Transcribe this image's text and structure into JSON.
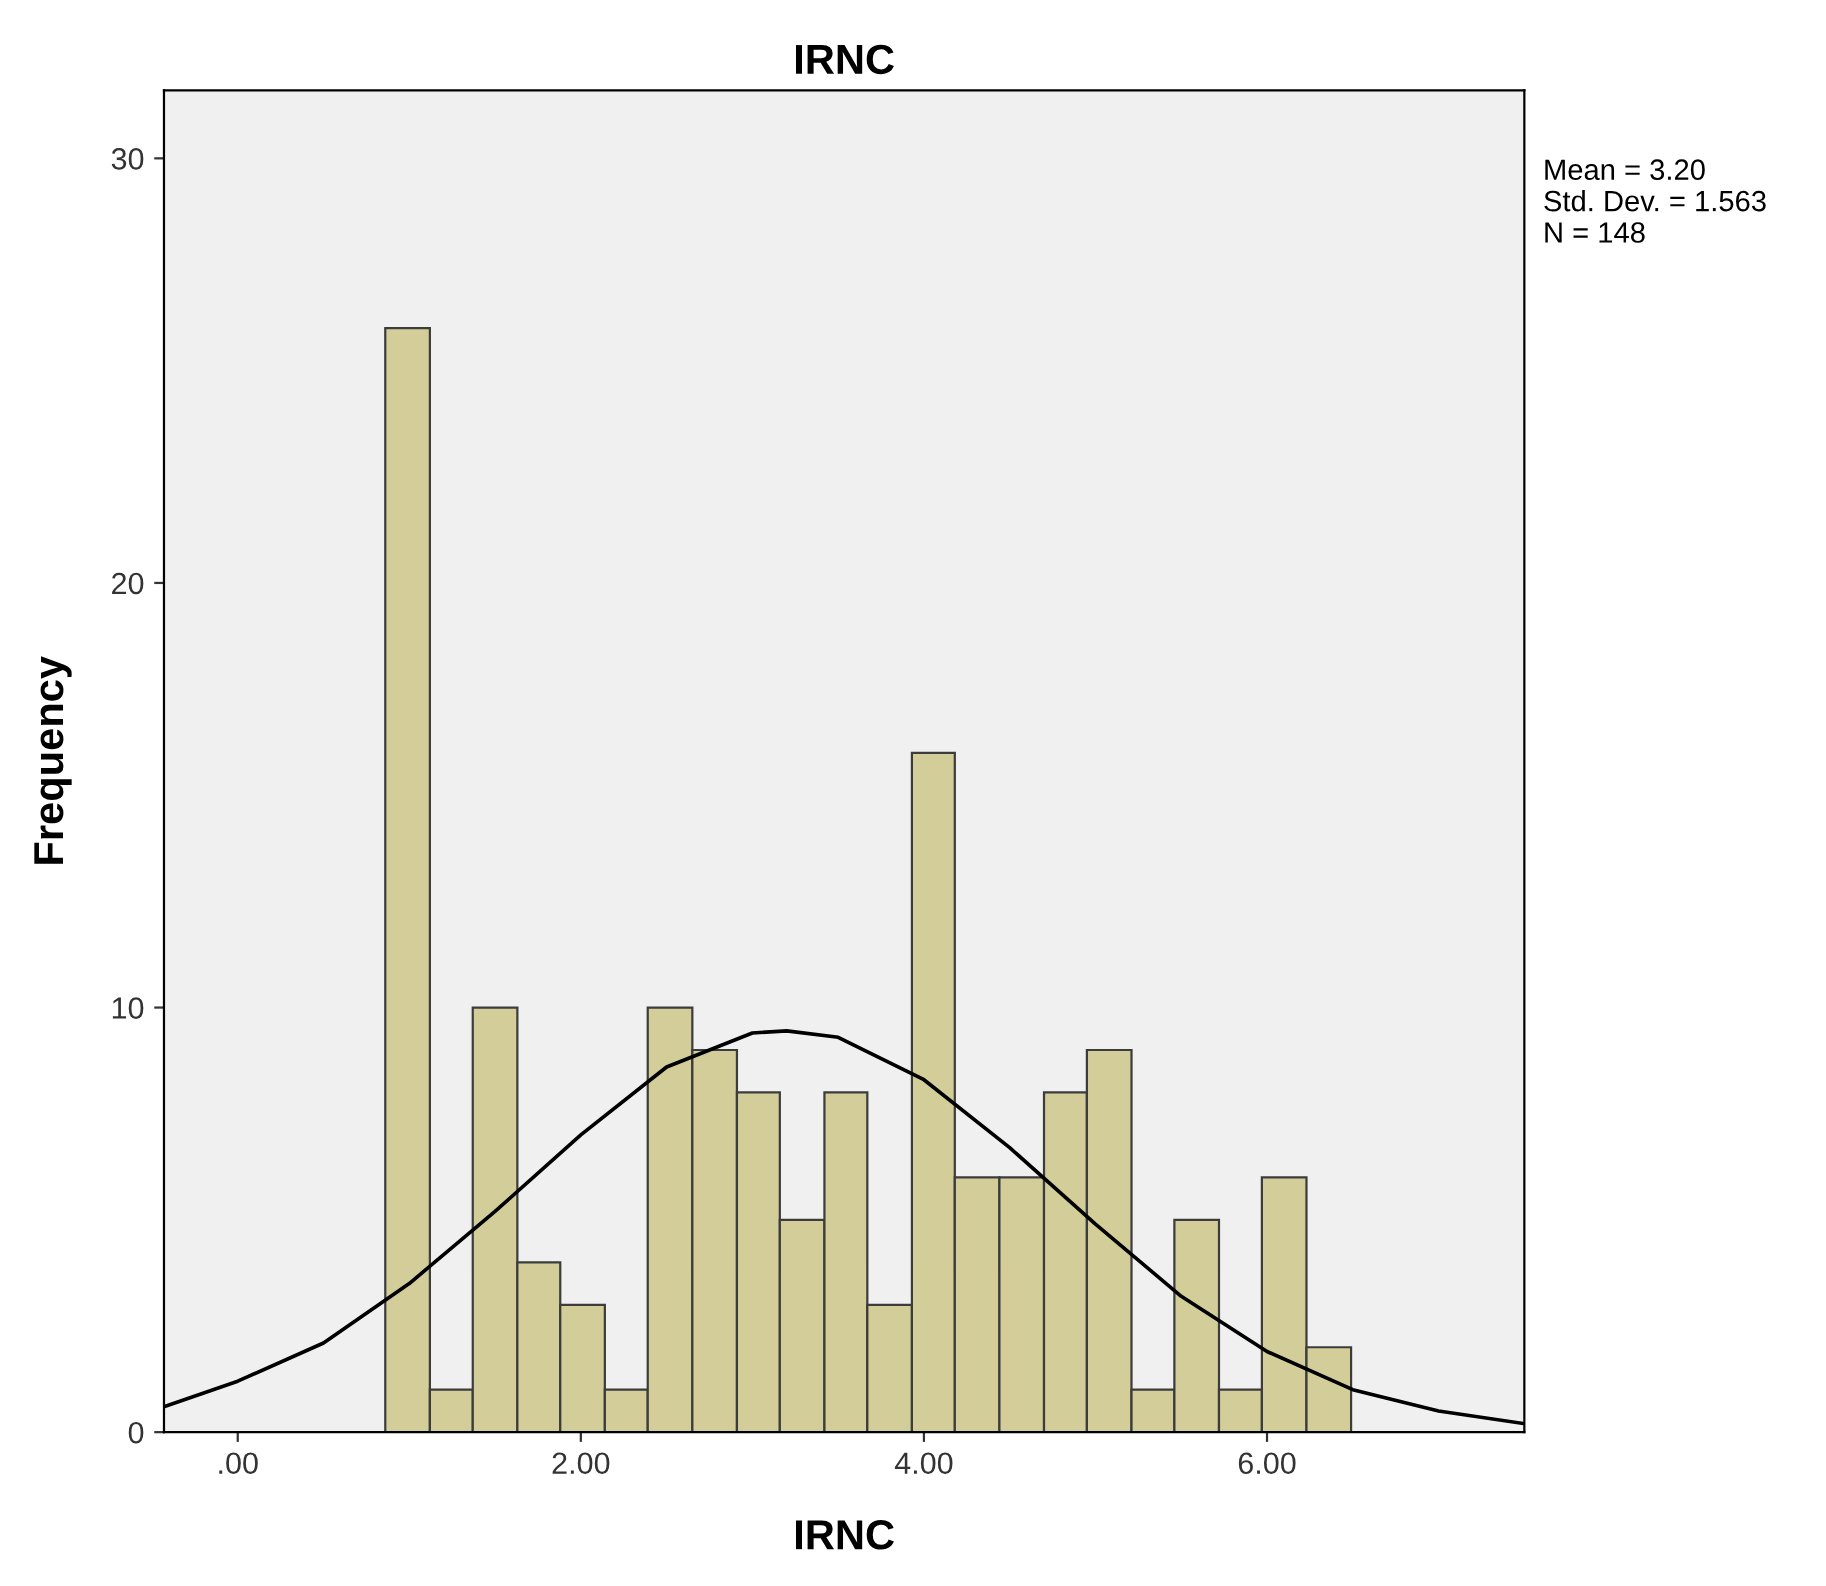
{
  "chart_data": {
    "type": "histogram",
    "title": "IRNC",
    "xlabel": "IRNC",
    "ylabel": "Frequency",
    "bins": [
      0.86,
      1.12,
      1.37,
      1.63,
      1.88,
      2.14,
      2.39,
      2.65,
      2.91,
      3.16,
      3.42,
      3.67,
      3.93,
      4.18,
      4.44,
      4.7,
      4.95,
      5.21,
      5.46,
      5.72,
      5.97,
      6.23,
      6.49
    ],
    "values": [
      26,
      1,
      10,
      4,
      3,
      1,
      10,
      9,
      8,
      5,
      8,
      3,
      16,
      6,
      6,
      8,
      9,
      1,
      5,
      1,
      6,
      2
    ],
    "color": "#d3ce99",
    "series": [
      {
        "type": "line",
        "color": "#000000",
        "x": [
          -0.43,
          0,
          0.5,
          1.0,
          1.5,
          2.0,
          2.5,
          3.0,
          3.2,
          3.5,
          4.0,
          4.5,
          5.0,
          5.5,
          6.0,
          6.5,
          7.0,
          7.5
        ],
        "values": [
          0.6,
          1.2,
          2.1,
          3.5,
          5.2,
          7.0,
          8.6,
          9.4,
          9.45,
          9.3,
          8.3,
          6.7,
          4.9,
          3.2,
          1.9,
          1.0,
          0.5,
          0.2
        ]
      }
    ],
    "xlim": [
      -0.43,
      7.5
    ],
    "ylim": [
      0,
      31.6
    ],
    "xticks": [
      {
        "value": 0,
        "label": ".00"
      },
      {
        "value": 2,
        "label": "2.00"
      },
      {
        "value": 4,
        "label": "4.00"
      },
      {
        "value": 6,
        "label": "6.00"
      }
    ],
    "yticks": [
      0,
      10,
      20,
      30
    ],
    "grid": false,
    "annotations": [
      "Mean = 3.20\nStd. Dev. = 1.563\nN = 148"
    ]
  }
}
